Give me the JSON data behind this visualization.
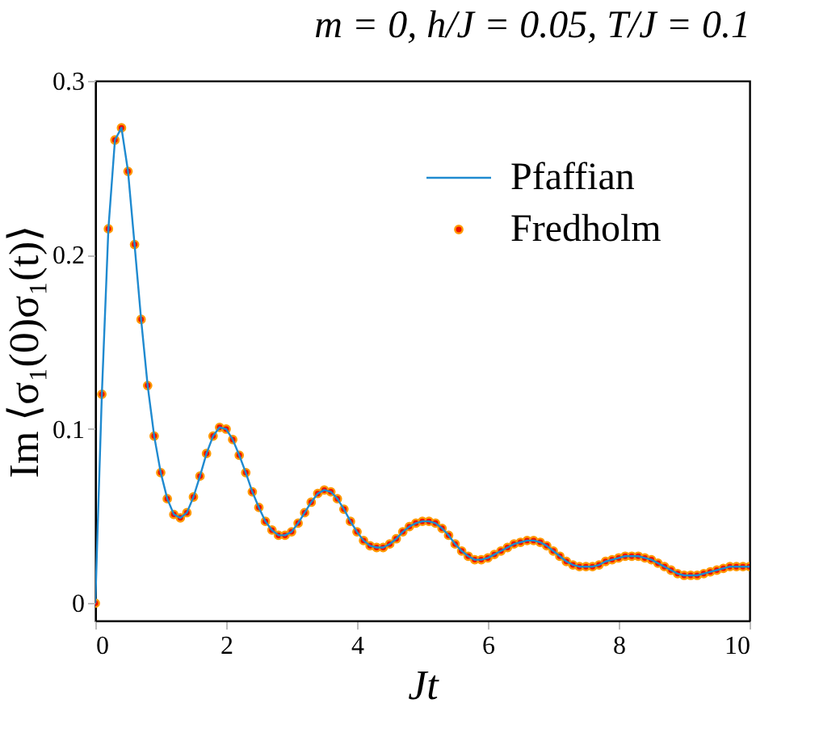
{
  "chart_data": {
    "type": "line",
    "title": "m = 0, h/J = 0.05, T/J = 0.1",
    "xlabel": "Jt",
    "ylabel": "Im ⟨σ₁(0)σ₁(t)⟩",
    "xlim": [
      0,
      10
    ],
    "xticks": [
      0,
      2,
      4,
      6,
      8,
      10
    ],
    "ylim": [
      -0.01,
      0.3
    ],
    "yticks": [
      0,
      0.1,
      0.2,
      0.3
    ],
    "grid": false,
    "legend": "top right",
    "x": [
      0,
      0.1,
      0.2,
      0.3,
      0.4,
      0.5,
      0.6,
      0.7,
      0.8,
      0.9,
      1.0,
      1.1,
      1.2,
      1.3,
      1.4,
      1.5,
      1.6,
      1.7,
      1.8,
      1.9,
      2.0,
      2.1,
      2.2,
      2.3,
      2.4,
      2.5,
      2.6,
      2.7,
      2.8,
      2.9,
      3.0,
      3.1,
      3.2,
      3.3,
      3.4,
      3.5,
      3.6,
      3.7,
      3.8,
      3.9,
      4.0,
      4.1,
      4.2,
      4.3,
      4.4,
      4.5,
      4.6,
      4.7,
      4.8,
      4.9,
      5.0,
      5.1,
      5.2,
      5.3,
      5.4,
      5.5,
      5.6,
      5.7,
      5.8,
      5.9,
      6.0,
      6.1,
      6.2,
      6.3,
      6.4,
      6.5,
      6.6,
      6.7,
      6.8,
      6.9,
      7.0,
      7.1,
      7.2,
      7.3,
      7.4,
      7.5,
      7.6,
      7.7,
      7.8,
      7.9,
      8.0,
      8.1,
      8.2,
      8.3,
      8.4,
      8.5,
      8.6,
      8.7,
      8.8,
      8.9,
      9.0,
      9.1,
      9.2,
      9.3,
      9.4,
      9.5,
      9.6,
      9.7,
      9.8,
      9.9,
      10.0
    ],
    "series": [
      {
        "name": "Pfaffian",
        "color": "#1f8ad0",
        "marker": "none",
        "line_style": "solid",
        "values": [
          0,
          0.12,
          0.215,
          0.266,
          0.273,
          0.248,
          0.206,
          0.163,
          0.125,
          0.096,
          0.075,
          0.06,
          0.051,
          0.049,
          0.052,
          0.061,
          0.073,
          0.086,
          0.096,
          0.101,
          0.1,
          0.094,
          0.085,
          0.075,
          0.064,
          0.055,
          0.047,
          0.042,
          0.039,
          0.039,
          0.041,
          0.046,
          0.052,
          0.058,
          0.063,
          0.065,
          0.064,
          0.06,
          0.054,
          0.047,
          0.041,
          0.036,
          0.033,
          0.032,
          0.032,
          0.034,
          0.037,
          0.041,
          0.044,
          0.046,
          0.047,
          0.047,
          0.046,
          0.043,
          0.039,
          0.034,
          0.03,
          0.027,
          0.025,
          0.025,
          0.026,
          0.028,
          0.03,
          0.032,
          0.034,
          0.035,
          0.036,
          0.036,
          0.035,
          0.033,
          0.03,
          0.027,
          0.024,
          0.022,
          0.021,
          0.021,
          0.021,
          0.022,
          0.024,
          0.025,
          0.026,
          0.027,
          0.027,
          0.027,
          0.026,
          0.025,
          0.023,
          0.021,
          0.019,
          0.017,
          0.016,
          0.016,
          0.016,
          0.017,
          0.018,
          0.019,
          0.02,
          0.021,
          0.021,
          0.021,
          0.021
        ]
      },
      {
        "name": "Fredholm",
        "type": "scatter",
        "color": "#ee1100",
        "marker": "circle",
        "values": [
          0,
          0.12,
          0.215,
          0.266,
          0.273,
          0.248,
          0.206,
          0.163,
          0.125,
          0.096,
          0.075,
          0.06,
          0.051,
          0.049,
          0.052,
          0.061,
          0.073,
          0.086,
          0.096,
          0.101,
          0.1,
          0.094,
          0.085,
          0.075,
          0.064,
          0.055,
          0.047,
          0.042,
          0.039,
          0.039,
          0.041,
          0.046,
          0.052,
          0.058,
          0.063,
          0.065,
          0.064,
          0.06,
          0.054,
          0.047,
          0.041,
          0.036,
          0.033,
          0.032,
          0.032,
          0.034,
          0.037,
          0.041,
          0.044,
          0.046,
          0.047,
          0.047,
          0.046,
          0.043,
          0.039,
          0.034,
          0.03,
          0.027,
          0.025,
          0.025,
          0.026,
          0.028,
          0.03,
          0.032,
          0.034,
          0.035,
          0.036,
          0.036,
          0.035,
          0.033,
          0.03,
          0.027,
          0.024,
          0.022,
          0.021,
          0.021,
          0.021,
          0.022,
          0.024,
          0.025,
          0.026,
          0.027,
          0.027,
          0.027,
          0.026,
          0.025,
          0.023,
          0.021,
          0.019,
          0.017,
          0.016,
          0.016,
          0.016,
          0.017,
          0.018,
          0.019,
          0.02,
          0.021,
          0.021,
          0.021,
          0.021
        ]
      }
    ]
  }
}
